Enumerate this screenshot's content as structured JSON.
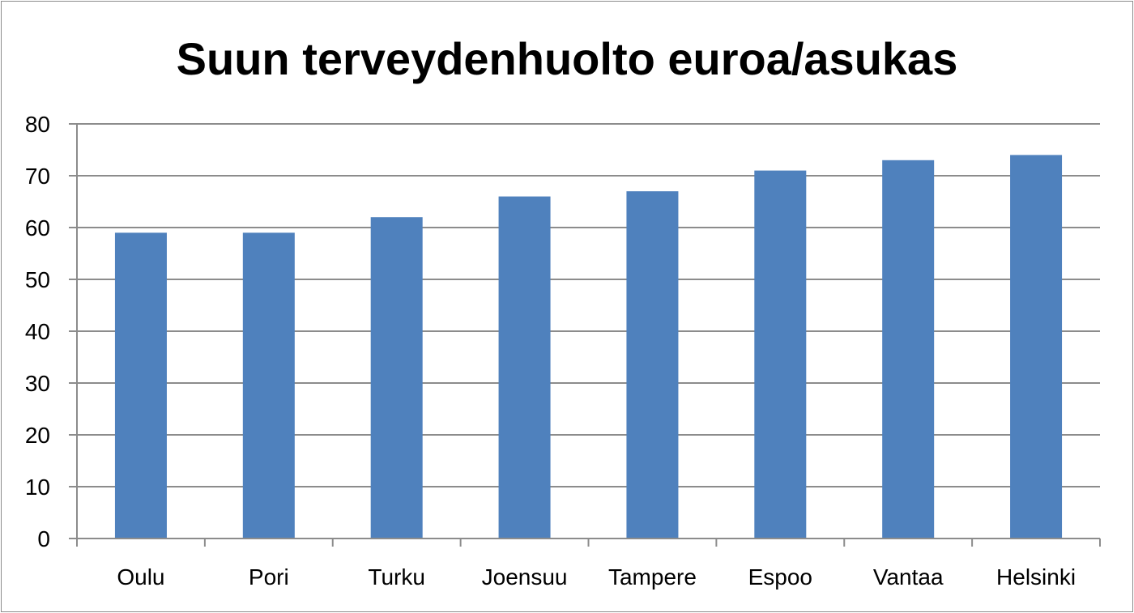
{
  "chart_data": {
    "type": "bar",
    "title": "Suun terveydenhuolto euroa/asukas",
    "xlabel": "",
    "ylabel": "",
    "categories": [
      "Oulu",
      "Pori",
      "Turku",
      "Joensuu",
      "Tampere",
      "Espoo",
      "Vantaa",
      "Helsinki"
    ],
    "values": [
      59,
      59,
      62,
      66,
      67,
      71,
      73,
      74
    ],
    "ylim": [
      0,
      80
    ],
    "yticks": [
      0,
      10,
      20,
      30,
      40,
      50,
      60,
      70,
      80
    ],
    "grid": true,
    "legend": "none",
    "bar_color": "#4f81bd"
  }
}
